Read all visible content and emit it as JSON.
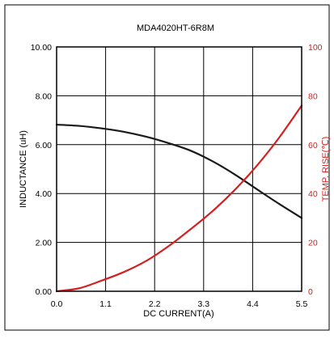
{
  "chart_data": {
    "type": "line",
    "title": "MDA4020HT-6R8M",
    "xlabel": "DC CURRENT(A)",
    "ylabel_left": "INDUCTANCE (uH)",
    "ylabel_right": "TEMP. RISE(℃)",
    "xlim": [
      0,
      5.5
    ],
    "ylim_left": [
      0,
      10
    ],
    "ylim_right": [
      0,
      100
    ],
    "x_ticks": [
      "0.0",
      "1.1",
      "2.2",
      "3.3",
      "4.4",
      "5.5"
    ],
    "y_left_ticks": [
      "0.00",
      "2.00",
      "4.00",
      "6.00",
      "8.00",
      "10.00"
    ],
    "y_right_ticks": [
      "0",
      "20",
      "40",
      "60",
      "80",
      "100"
    ],
    "grid": true,
    "colors": {
      "inductance": "#1a1a1a",
      "temp_rise": "#d42020",
      "right_axis": "#d42020"
    },
    "series": [
      {
        "axis": "left",
        "x": [
          0.0,
          0.5,
          1.0,
          1.5,
          2.0,
          2.5,
          3.0,
          3.5,
          4.0,
          4.5,
          5.0,
          5.5
        ],
        "values": [
          6.82,
          6.77,
          6.67,
          6.53,
          6.33,
          6.07,
          5.76,
          5.32,
          4.78,
          4.17,
          3.57,
          3.0
        ]
      },
      {
        "axis": "right",
        "x": [
          0.0,
          0.5,
          1.0,
          1.5,
          2.0,
          2.5,
          3.0,
          3.5,
          4.0,
          4.5,
          5.0,
          5.5
        ],
        "values": [
          0,
          1.2,
          4.3,
          7.8,
          12.3,
          18.3,
          25.3,
          32.8,
          41.5,
          51.5,
          63.0,
          76.0
        ]
      }
    ]
  }
}
